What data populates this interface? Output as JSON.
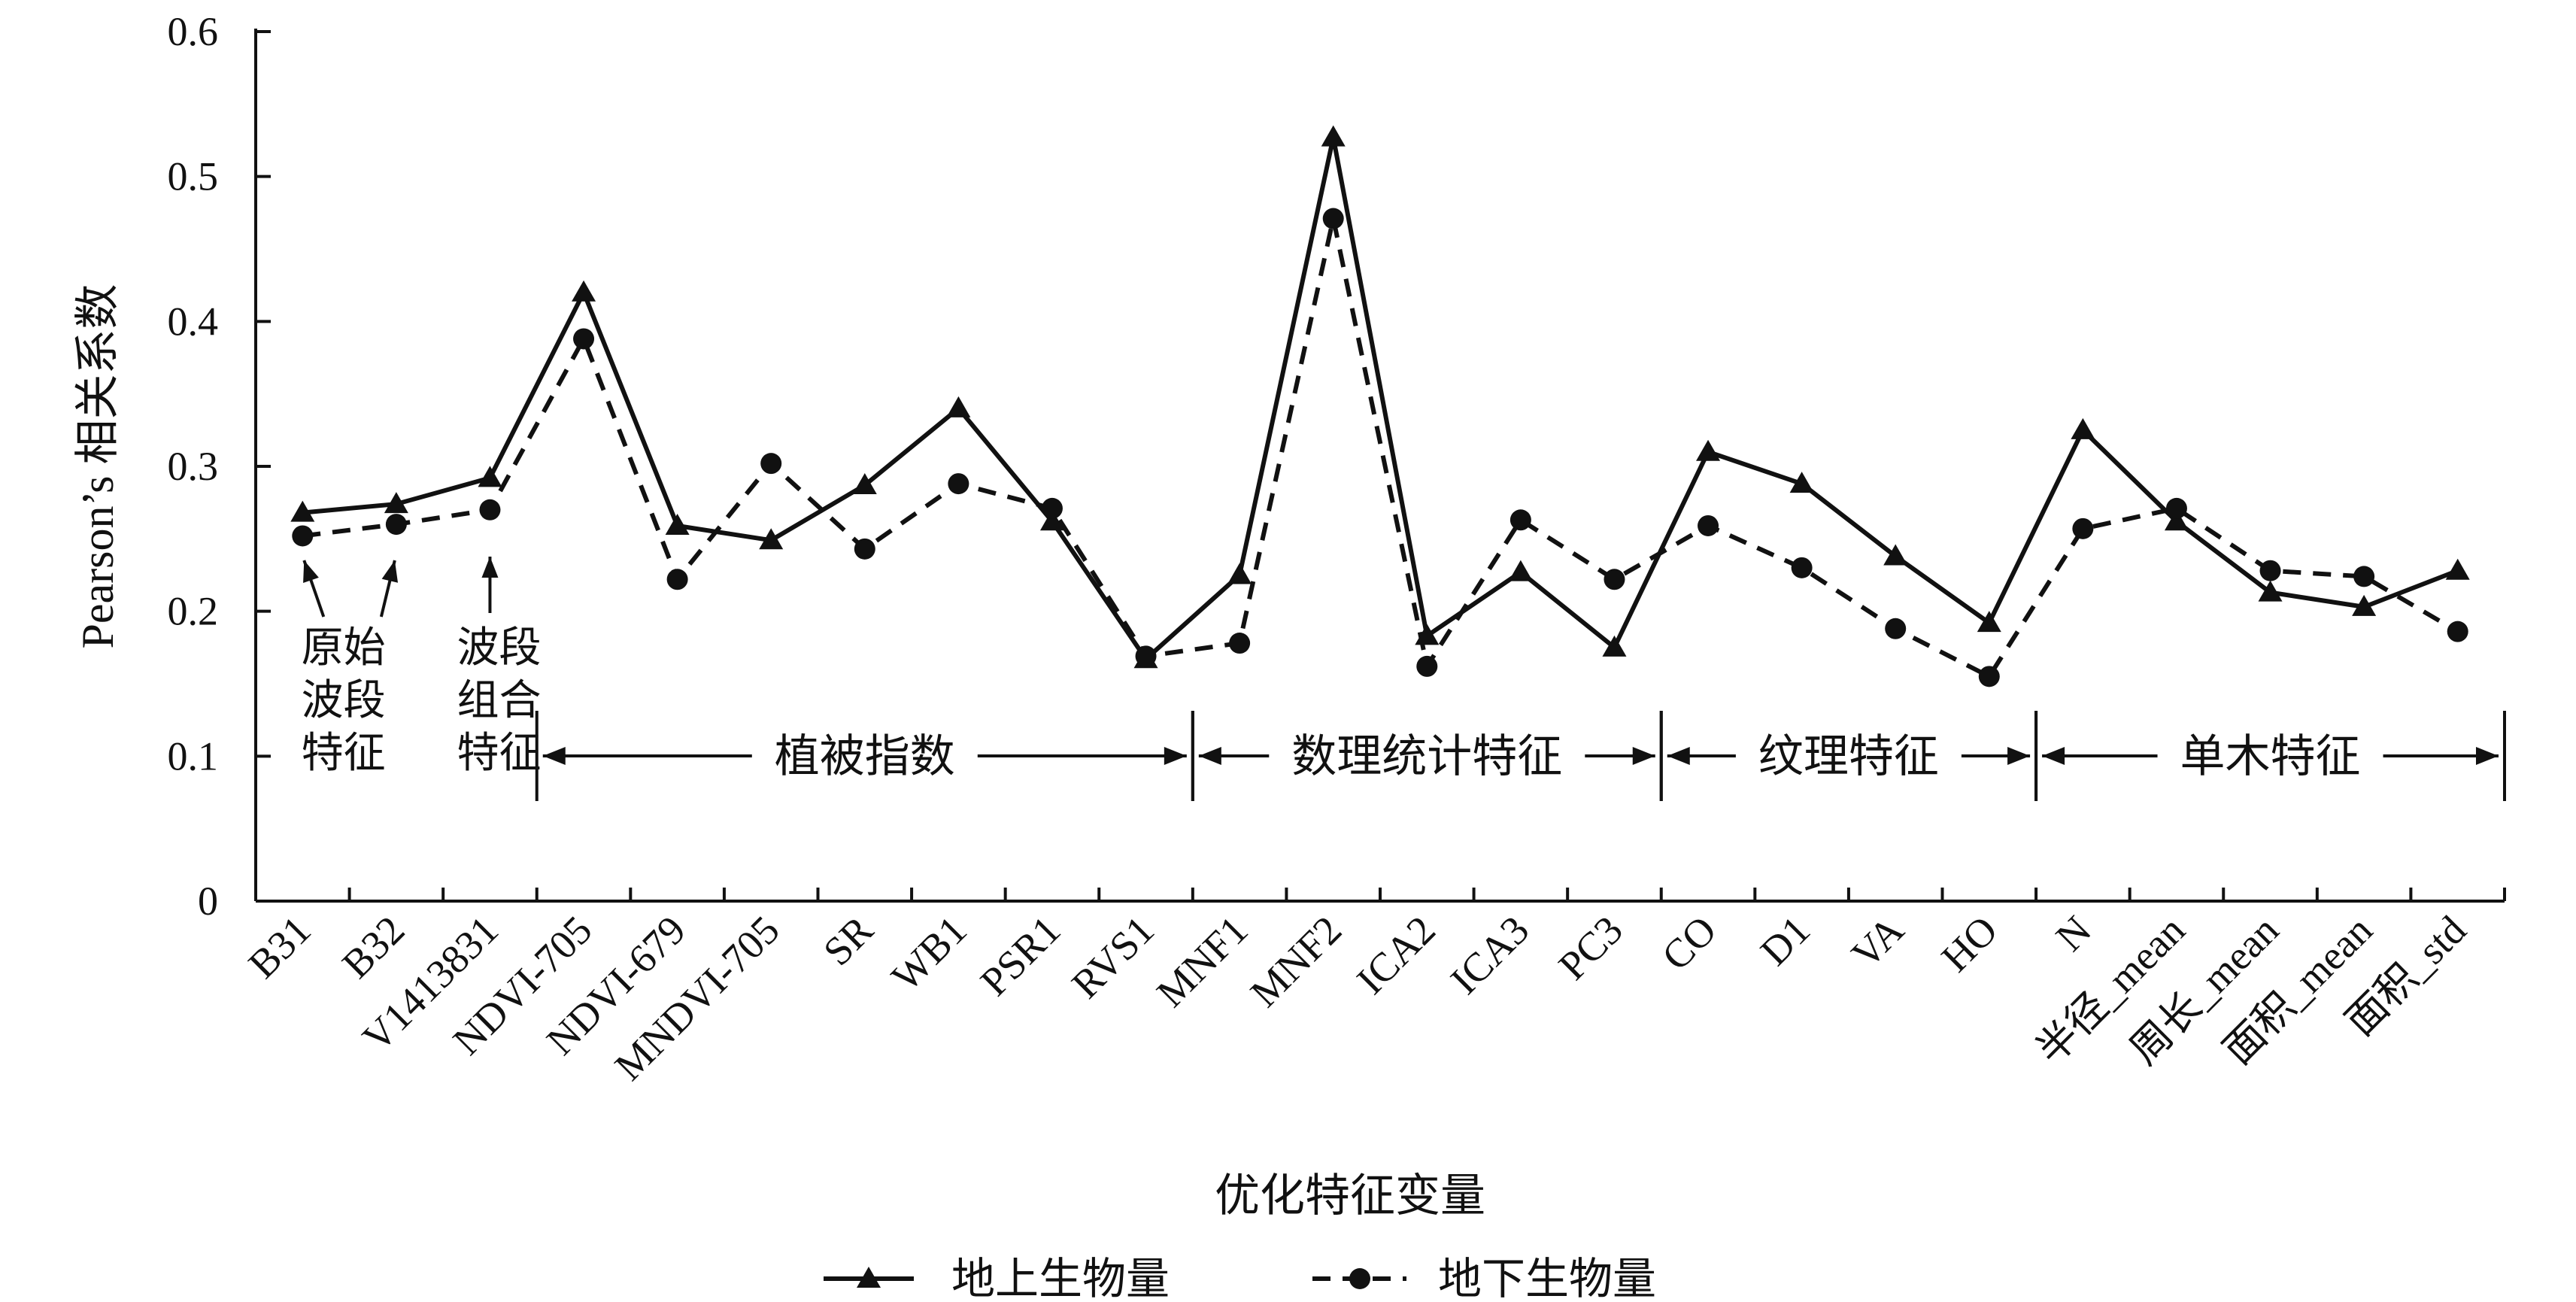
{
  "chart_data": {
    "type": "line",
    "categories": [
      "B31",
      "B32",
      "V1413831",
      "NDVI-705",
      "NDVI-679",
      "MNDVI-705",
      "SR",
      "WB1",
      "PSR1",
      "RVS1",
      "MNF1",
      "MNF2",
      "ICA2",
      "ICA3",
      "PC3",
      "CO",
      "D1",
      "VA",
      "HO",
      "N",
      "半径_mean",
      "周长_mean",
      "面积_mean",
      "面积_std"
    ],
    "series": [
      {
        "name": "地上生物量",
        "marker": "triangle",
        "style": "solid",
        "values": [
          0.268,
          0.274,
          0.292,
          0.42,
          0.259,
          0.249,
          0.287,
          0.34,
          0.262,
          0.167,
          0.225,
          0.527,
          0.183,
          0.227,
          0.175,
          0.31,
          0.288,
          0.238,
          0.192,
          0.325,
          0.262,
          0.213,
          0.203,
          0.228
        ]
      },
      {
        "name": "地下生物量",
        "marker": "circle",
        "style": "dashed",
        "values": [
          0.252,
          0.26,
          0.27,
          0.388,
          0.222,
          0.302,
          0.243,
          0.288,
          0.271,
          0.169,
          0.178,
          0.471,
          0.162,
          0.263,
          0.222,
          0.259,
          0.23,
          0.188,
          0.155,
          0.257,
          0.271,
          0.228,
          0.224,
          0.186
        ]
      }
    ],
    "ylabel": "Pearson’s 相关系数",
    "xlabel": "优化特征变量",
    "ylim": [
      0,
      0.6
    ],
    "yticks": [
      "0",
      "0.1",
      "0.2",
      "0.3",
      "0.4",
      "0.5",
      "0.6"
    ],
    "grid": false,
    "legend_position": "bottom",
    "group_annotations": [
      {
        "label": "植被指数",
        "from_index": 3,
        "to_index": 9
      },
      {
        "label": "数理统计特征",
        "from_index": 10,
        "to_index": 14
      },
      {
        "label": "纹理特征",
        "from_index": 15,
        "to_index": 18
      },
      {
        "label": "单木特征",
        "from_index": 19,
        "to_index": 23
      }
    ],
    "point_annotations": [
      {
        "lines": [
          "原始",
          "波段",
          "特征"
        ],
        "targets": [
          0,
          1
        ]
      },
      {
        "lines": [
          "波段",
          "组合",
          "特征"
        ],
        "targets": [
          2
        ]
      }
    ]
  }
}
